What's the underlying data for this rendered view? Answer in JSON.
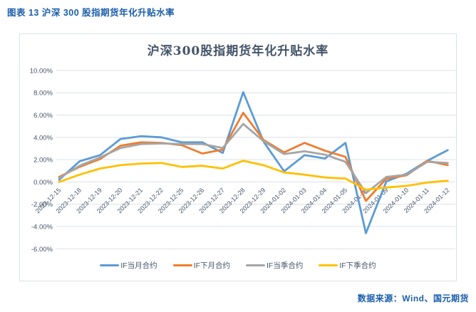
{
  "caption": "图表 13 沪深 300 股指期货年化升贴水率",
  "source": "数据来源：Wind、国元期货",
  "colors": {
    "caption_text": "#1B5EAC",
    "title_text": "#44546A",
    "axis_text": "#44546A",
    "gridline": "#D9E1EC",
    "frame_border": "#D9E2EC"
  },
  "chart_data": {
    "type": "line",
    "title": "沪深300股指期货年化升贴水率",
    "xlabel": "",
    "ylabel": "",
    "grid": true,
    "legend_position": "bottom",
    "ylim": [
      -6,
      10
    ],
    "y_ticks": [
      {
        "label": "10.00%",
        "value": 10
      },
      {
        "label": "8.00%",
        "value": 8
      },
      {
        "label": "6.00%",
        "value": 6
      },
      {
        "label": "4.00%",
        "value": 4
      },
      {
        "label": "2.00%",
        "value": 2
      },
      {
        "label": "0.00%",
        "value": 0
      },
      {
        "label": "-2.00%",
        "value": -2
      },
      {
        "label": "-4.00%",
        "value": -4
      },
      {
        "label": "-6.00%",
        "value": -6
      }
    ],
    "categories": [
      "2023-12-15",
      "2023-12-18",
      "2023-12-19",
      "2023-12-20",
      "2023-12-21",
      "2023-12-22",
      "2023-12-25",
      "2023-12-26",
      "2023-12-27",
      "2023-12-28",
      "2023-12-29",
      "2024-01-02",
      "2024-01-03",
      "2024-01-04",
      "2024-01-05",
      "2024-01-08",
      "2024-01-09",
      "2024-01-10",
      "2024-01-11",
      "2024-01-12"
    ],
    "series": [
      {
        "name": "IF当月合约",
        "color": "#5B9BD5",
        "values": [
          0.2,
          1.85,
          2.4,
          3.85,
          4.1,
          4.0,
          3.55,
          3.55,
          2.6,
          8.05,
          3.6,
          0.95,
          2.4,
          2.1,
          3.5,
          -4.6,
          0.05,
          0.75,
          1.9,
          2.85
        ]
      },
      {
        "name": "IF下月合约",
        "color": "#ED7D31",
        "values": [
          0.45,
          1.35,
          2.05,
          3.25,
          3.55,
          3.5,
          3.3,
          2.55,
          2.9,
          6.2,
          3.75,
          2.65,
          3.5,
          2.8,
          2.25,
          -1.7,
          0.3,
          0.6,
          1.9,
          1.5
        ]
      },
      {
        "name": "IF当季合约",
        "color": "#A5A5A5",
        "values": [
          0.35,
          1.45,
          2.2,
          3.05,
          3.4,
          3.45,
          3.4,
          3.4,
          3.05,
          5.2,
          3.65,
          2.5,
          2.75,
          2.45,
          1.8,
          -1.0,
          0.45,
          0.65,
          1.8,
          1.7
        ]
      },
      {
        "name": "IF下季合约",
        "color": "#FFC000",
        "values": [
          0.0,
          0.65,
          1.2,
          1.5,
          1.65,
          1.7,
          1.35,
          1.45,
          1.2,
          1.9,
          1.5,
          0.85,
          0.65,
          0.4,
          0.3,
          -0.7,
          -0.5,
          -0.35,
          -0.05,
          0.1
        ]
      }
    ]
  }
}
